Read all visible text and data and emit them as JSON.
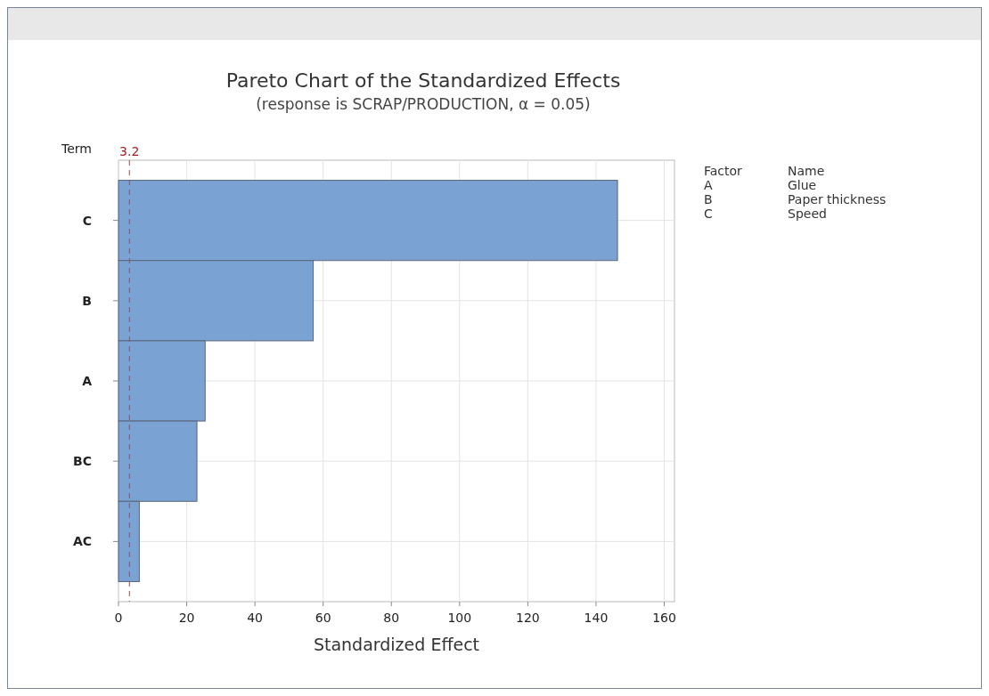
{
  "chart_data": {
    "type": "bar",
    "orientation": "horizontal",
    "title": "Pareto Chart of the Standardized Effects",
    "subtitle": "(response is SCRAP/PRODUCTION, α = 0.05)",
    "xlabel": "Standardized Effect",
    "ylabel": "Term",
    "categories": [
      "C",
      "B",
      "A",
      "BC",
      "AC"
    ],
    "values": [
      146.3,
      57.1,
      25.4,
      23.0,
      6.1
    ],
    "color": "#7aa3d4",
    "xlim": [
      0,
      163
    ],
    "xticks": [
      0,
      20,
      40,
      60,
      80,
      100,
      120,
      140,
      160
    ],
    "grid": true,
    "ref_lines": [
      {
        "axis": "x",
        "value": 3.2,
        "label": "3.2",
        "color": "#e03030",
        "line_style": "dashed"
      }
    ],
    "annotations": [
      "Factor",
      "Name",
      "A",
      "Glue",
      "B",
      "Paper thickness",
      "C",
      "Speed"
    ]
  }
}
